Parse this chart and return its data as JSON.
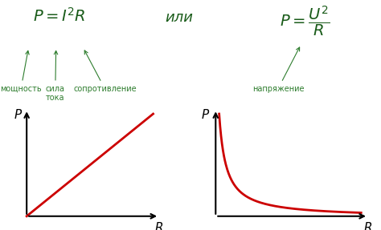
{
  "bg_color": "#ffffff",
  "formula_or": "или",
  "label_moshnost": "мощность",
  "label_sila": "сила\nтока",
  "label_soprotivlenie": "сопротивление",
  "label_napryazhenie": "напряжение",
  "axis_label_P": "P",
  "axis_label_R": "R",
  "curve_color": "#cc0000",
  "axis_color": "#000000",
  "formula_color": "#1a5c1a",
  "annotation_color": "#2e7d2e",
  "font_size_formula": 14,
  "font_size_or": 13,
  "font_size_annotation": 7,
  "font_size_axis": 11
}
